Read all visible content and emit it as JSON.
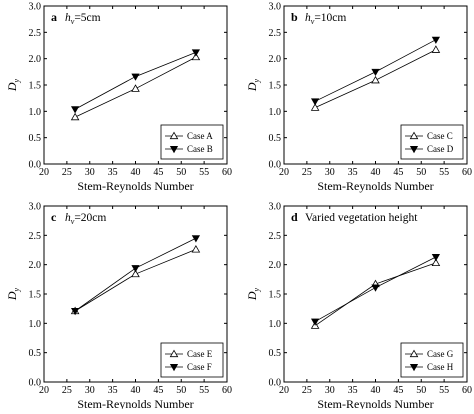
{
  "chart_data": [
    {
      "type": "line",
      "panel_letter": "a",
      "condition": {
        "symbol": "h",
        "subscript": "v",
        "text": "=5cm"
      },
      "xlabel": "Stem-Reynolds Number",
      "ylabel": {
        "symbol": "D",
        "subscript": "y"
      },
      "xlim": [
        20,
        60
      ],
      "ylim": [
        0.0,
        3.0
      ],
      "xticks": [
        "20",
        "25",
        "30",
        "35",
        "40",
        "45",
        "50",
        "55",
        "60"
      ],
      "yticks": [
        "0.0",
        "0.5",
        "1.0",
        "1.5",
        "2.0",
        "2.5",
        "3.0"
      ],
      "legend_position": "bottom-right",
      "series": [
        {
          "name": "Case A",
          "marker": "triangle-up-open",
          "x": [
            26.8,
            40.0,
            53.2
          ],
          "y": [
            0.89,
            1.43,
            2.03
          ]
        },
        {
          "name": "Case B",
          "marker": "triangle-down-filled",
          "x": [
            26.8,
            40.0,
            53.2
          ],
          "y": [
            1.04,
            1.66,
            2.12
          ]
        }
      ]
    },
    {
      "type": "line",
      "panel_letter": "b",
      "condition": {
        "symbol": "h",
        "subscript": "v",
        "text": "=10cm"
      },
      "xlabel": "Stem-Reynolds Number",
      "ylabel": {
        "symbol": "D",
        "subscript": "y"
      },
      "xlim": [
        20,
        60
      ],
      "ylim": [
        0.0,
        3.0
      ],
      "xticks": [
        "20",
        "25",
        "30",
        "35",
        "40",
        "45",
        "50",
        "55",
        "60"
      ],
      "yticks": [
        "0.0",
        "0.5",
        "1.0",
        "1.5",
        "2.0",
        "2.5",
        "3.0"
      ],
      "legend_position": "bottom-right",
      "series": [
        {
          "name": "Case C",
          "marker": "triangle-up-open",
          "x": [
            26.8,
            40.0,
            53.2
          ],
          "y": [
            1.07,
            1.59,
            2.17
          ]
        },
        {
          "name": "Case D",
          "marker": "triangle-down-filled",
          "x": [
            26.8,
            40.0,
            53.2
          ],
          "y": [
            1.19,
            1.75,
            2.36
          ]
        }
      ]
    },
    {
      "type": "line",
      "panel_letter": "c",
      "condition": {
        "symbol": "h",
        "subscript": "v",
        "text": "=20cm"
      },
      "xlabel": "Stem-Reynolds Number",
      "ylabel": {
        "symbol": "D",
        "subscript": "y"
      },
      "xlim": [
        20,
        60
      ],
      "ylim": [
        0.0,
        3.0
      ],
      "xticks": [
        "20",
        "25",
        "30",
        "35",
        "40",
        "45",
        "50",
        "55",
        "60"
      ],
      "yticks": [
        "0.0",
        "0.5",
        "1.0",
        "1.5",
        "2.0",
        "2.5",
        "3.0"
      ],
      "legend_position": "bottom-right",
      "series": [
        {
          "name": "Case E",
          "marker": "triangle-up-open",
          "x": [
            26.8,
            40.0,
            53.2
          ],
          "y": [
            1.21,
            1.84,
            2.26
          ]
        },
        {
          "name": "Case F",
          "marker": "triangle-down-filled",
          "x": [
            26.8,
            40.0,
            53.2
          ],
          "y": [
            1.21,
            1.94,
            2.45
          ]
        }
      ]
    },
    {
      "type": "line",
      "panel_letter": "d",
      "condition": {
        "text": "Varied vegetation height"
      },
      "xlabel": "Stem-Reynolds Number",
      "ylabel": {
        "symbol": "D",
        "subscript": "y"
      },
      "xlim": [
        20,
        60
      ],
      "ylim": [
        0.0,
        3.0
      ],
      "xticks": [
        "20",
        "25",
        "30",
        "35",
        "40",
        "45",
        "50",
        "55",
        "60"
      ],
      "yticks": [
        "0.0",
        "0.5",
        "1.0",
        "1.5",
        "2.0",
        "2.5",
        "3.0"
      ],
      "legend_position": "bottom-right",
      "series": [
        {
          "name": "Case G",
          "marker": "triangle-up-open",
          "x": [
            26.8,
            40.0,
            53.2
          ],
          "y": [
            0.96,
            1.67,
            2.03
          ]
        },
        {
          "name": "Case H",
          "marker": "triangle-down-filled",
          "x": [
            26.8,
            40.0,
            53.2
          ],
          "y": [
            1.03,
            1.61,
            2.13
          ]
        }
      ]
    }
  ]
}
